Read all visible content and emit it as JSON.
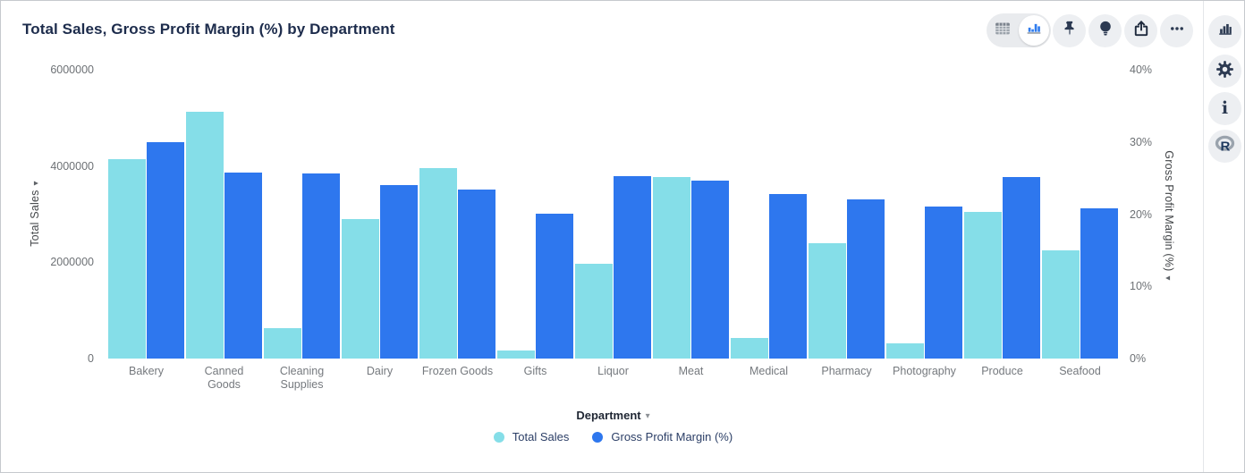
{
  "title": "Total Sales, Gross Profit Margin (%) by Department",
  "icons": {
    "caret_down": "▾",
    "ellipsis": "•••",
    "info_glyph": "i",
    "r_logo_letter": "R"
  },
  "toolbar": {
    "segments": [
      {
        "name": "table-view",
        "selected": false
      },
      {
        "name": "chart-view",
        "selected": true
      }
    ],
    "buttons": [
      "pin",
      "insights-bulb",
      "share-export",
      "more-options"
    ]
  },
  "right_rail": {
    "buttons": [
      "chart-type",
      "settings-gear",
      "info",
      "r-analysis"
    ]
  },
  "chart_data": {
    "type": "bar",
    "title": "Total Sales, Gross Profit Margin (%) by Department",
    "xlabel": "Department",
    "categories": [
      "Bakery",
      "Canned Goods",
      "Cleaning Supplies",
      "Dairy",
      "Frozen Goods",
      "Gifts",
      "Liquor",
      "Meat",
      "Medical",
      "Pharmacy",
      "Photography",
      "Produce",
      "Seafood"
    ],
    "series": [
      {
        "name": "Total Sales",
        "axis": "left",
        "color": "#85dee8",
        "values": [
          4140000,
          5130000,
          630000,
          2900000,
          3960000,
          160000,
          1970000,
          3780000,
          420000,
          2400000,
          310000,
          3050000,
          2250000
        ]
      },
      {
        "name": "Gross Profit Margin (%)",
        "axis": "right",
        "color": "#2e77ee",
        "values": [
          30.0,
          25.8,
          25.7,
          24.0,
          23.4,
          20.1,
          25.3,
          24.6,
          22.8,
          22.0,
          21.1,
          25.1,
          20.8
        ]
      }
    ],
    "left_axis": {
      "label": "Total Sales",
      "max": 6000000,
      "ticks": [
        {
          "label": "0",
          "v": 0
        },
        {
          "label": "2000000",
          "v": 2000000
        },
        {
          "label": "4000000",
          "v": 4000000
        },
        {
          "label": "6000000",
          "v": 6000000
        }
      ]
    },
    "right_axis": {
      "label": "Gross Profit Margin (%)",
      "max": 40,
      "ticks": [
        {
          "label": "0%",
          "v": 0
        },
        {
          "label": "10%",
          "v": 10
        },
        {
          "label": "20%",
          "v": 20
        },
        {
          "label": "30%",
          "v": 30
        },
        {
          "label": "40%",
          "v": 40
        }
      ]
    },
    "legend_position": "bottom",
    "grid": false
  }
}
